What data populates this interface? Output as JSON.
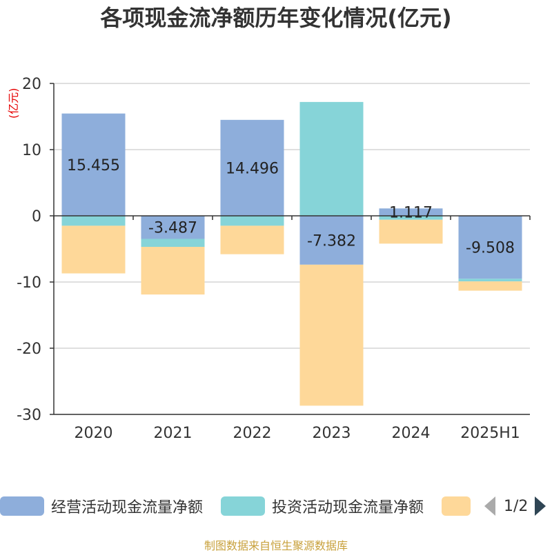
{
  "title": "各项现金流净额历年变化情况(亿元)",
  "unit_label": "(亿元)",
  "source": "制图数据来自恒生聚源数据库",
  "pager": {
    "text": "1/2"
  },
  "colors": {
    "operating": "#8eaedb",
    "investing": "#86d4d8",
    "financing": "#fed899",
    "axis": "#333333",
    "grid": "#cccccc",
    "unit": "#e60000",
    "source": "#c8a13c"
  },
  "chart_data": {
    "type": "bar",
    "stacked": true,
    "categories": [
      "2020",
      "2021",
      "2022",
      "2023",
      "2024",
      "2025H1"
    ],
    "ylim": [
      -30,
      20
    ],
    "yticks": [
      20,
      10,
      0,
      -10,
      -20,
      -30
    ],
    "grid": true,
    "legend_position": "bottom",
    "series": [
      {
        "name": "经营活动现金流量净额",
        "values": [
          15.455,
          -3.487,
          14.496,
          -7.382,
          1.117,
          -9.508
        ],
        "labels": [
          "15.455",
          "-3.487",
          "14.496",
          "-7.382",
          "1.117",
          "-9.508"
        ]
      },
      {
        "name": "投资活动现金流量净额",
        "values": [
          -1.5,
          -1.2,
          -1.5,
          17.2,
          -0.6,
          -0.4
        ]
      },
      {
        "name": "",
        "values": [
          -7.2,
          -7.2,
          -4.3,
          -21.3,
          -3.6,
          -1.4
        ]
      }
    ]
  }
}
